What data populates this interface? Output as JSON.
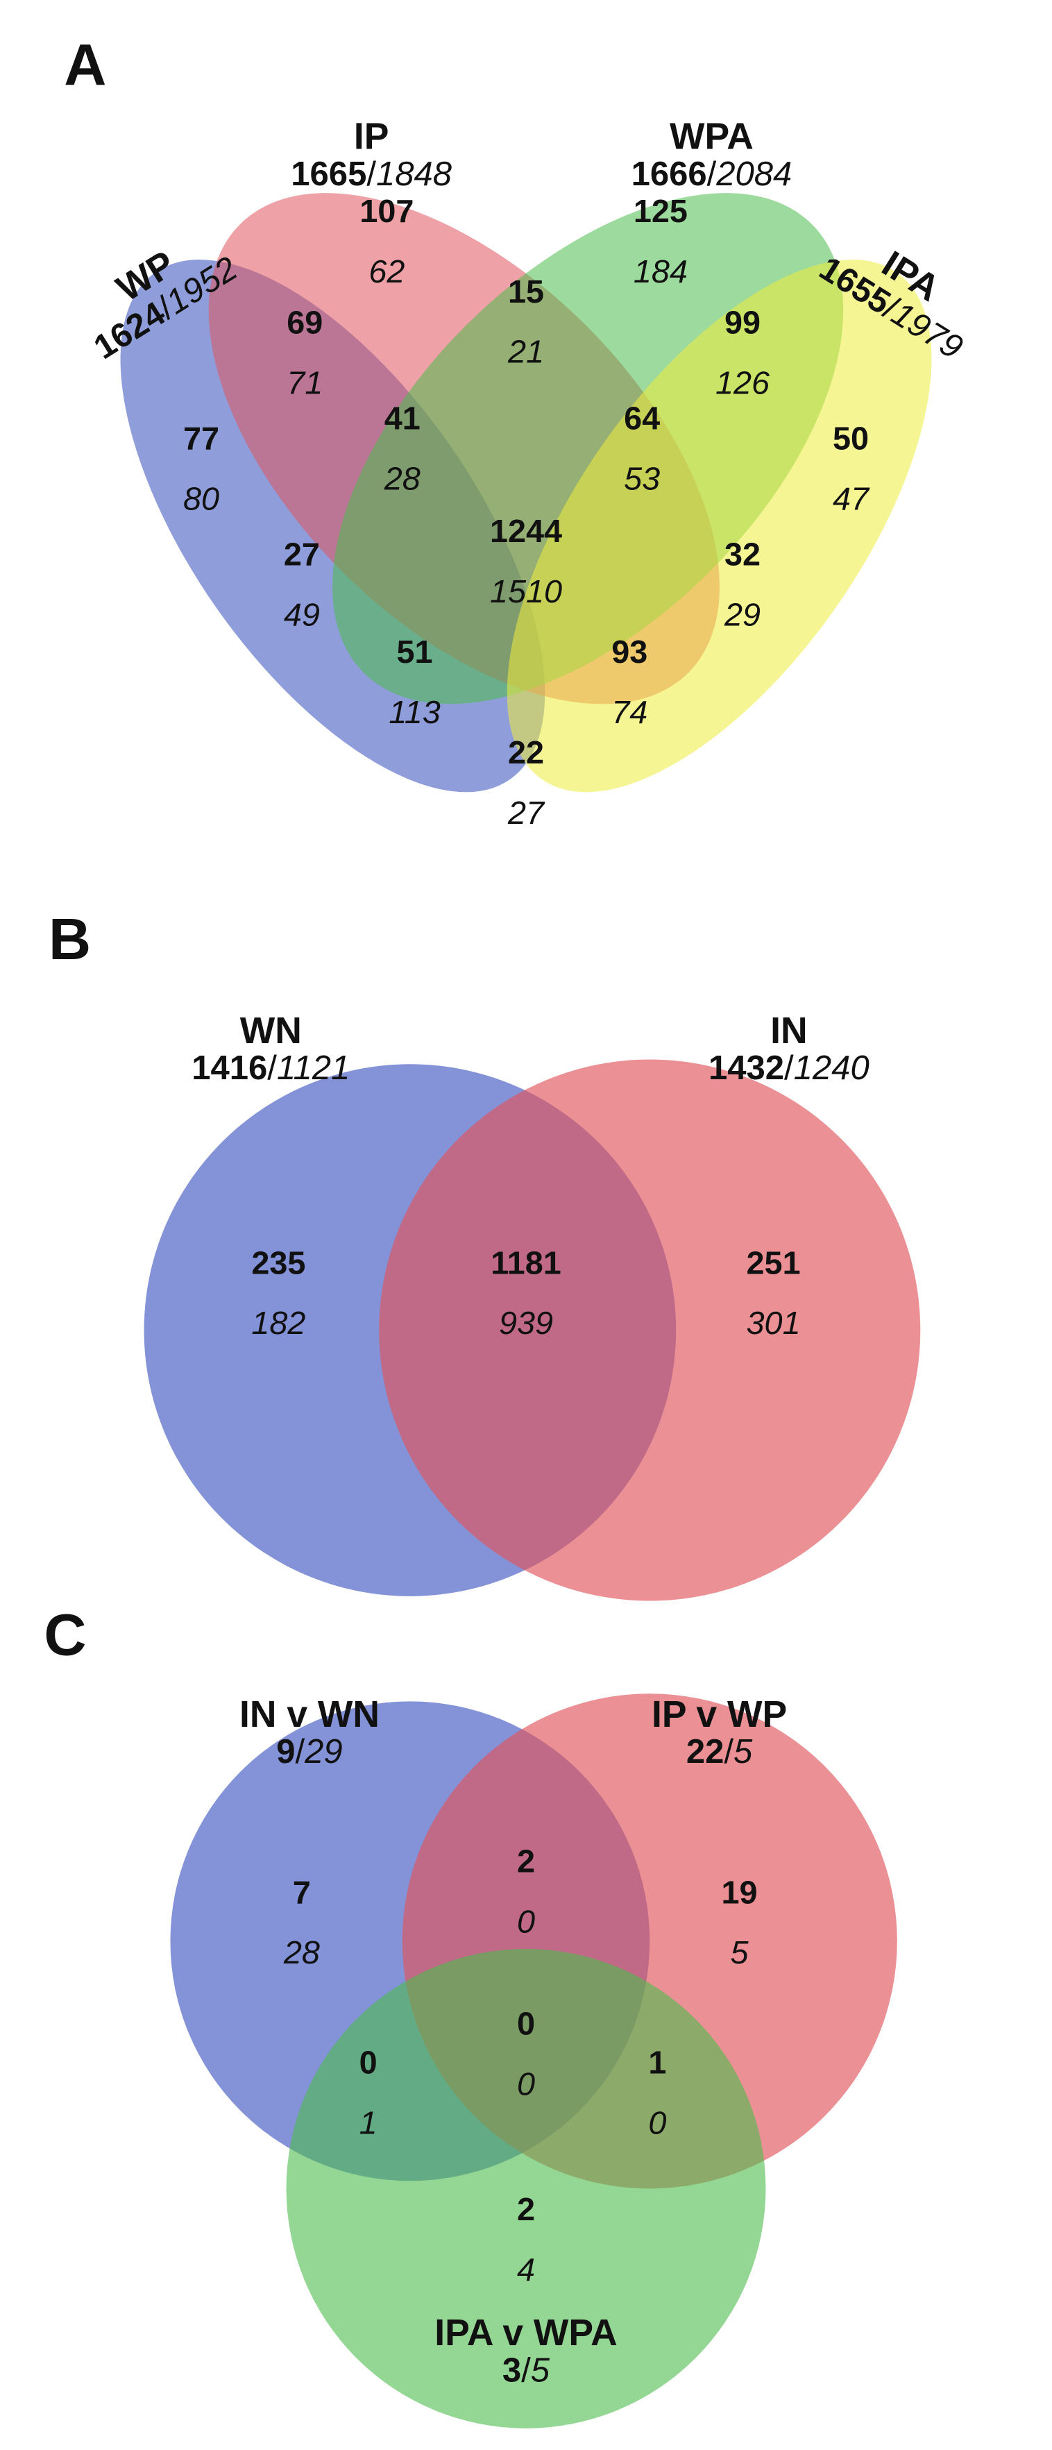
{
  "separator": "/",
  "panels": [
    {
      "letter": "A",
      "sets": [
        {
          "name": "WP",
          "bold": "1624",
          "italic": "1952"
        },
        {
          "name": "IP",
          "bold": "1665",
          "italic": "1848"
        },
        {
          "name": "WPA",
          "bold": "1666",
          "italic": "2084"
        },
        {
          "name": "IPA",
          "bold": "1655",
          "italic": "1979"
        }
      ],
      "regions": [
        {
          "bold": 107,
          "italic": 62
        },
        {
          "bold": 125,
          "italic": 184
        },
        {
          "bold": 69,
          "italic": 71
        },
        {
          "bold": 15,
          "italic": 21
        },
        {
          "bold": 99,
          "italic": 126
        },
        {
          "bold": 77,
          "italic": 80
        },
        {
          "bold": 41,
          "italic": 28
        },
        {
          "bold": 64,
          "italic": 53
        },
        {
          "bold": 50,
          "italic": 47
        },
        {
          "bold": 1244,
          "italic": 1510
        },
        {
          "bold": 27,
          "italic": 49
        },
        {
          "bold": 32,
          "italic": 29
        },
        {
          "bold": 51,
          "italic": 113
        },
        {
          "bold": 93,
          "italic": 74
        },
        {
          "bold": 22,
          "italic": 27
        }
      ]
    },
    {
      "letter": "B",
      "sets": [
        {
          "name": "WN",
          "bold": "1416",
          "italic": "1121"
        },
        {
          "name": "IN",
          "bold": "1432",
          "italic": "1240"
        }
      ],
      "regions": [
        {
          "bold": 235,
          "italic": 182
        },
        {
          "bold": 1181,
          "italic": 939
        },
        {
          "bold": 251,
          "italic": 301
        }
      ]
    },
    {
      "letter": "C",
      "sets": [
        {
          "name": "IN v WN",
          "bold": "9",
          "italic": "29"
        },
        {
          "name": "IP v WP",
          "bold": "22",
          "italic": "5"
        },
        {
          "name": "IPA v WPA",
          "bold": "3",
          "italic": "5"
        }
      ],
      "regions": [
        {
          "bold": 7,
          "italic": 28
        },
        {
          "bold": 2,
          "italic": 0
        },
        {
          "bold": 19,
          "italic": 5
        },
        {
          "bold": 0,
          "italic": 0
        },
        {
          "bold": 0,
          "italic": 1
        },
        {
          "bold": 1,
          "italic": 0
        },
        {
          "bold": 2,
          "italic": 4
        }
      ]
    }
  ]
}
